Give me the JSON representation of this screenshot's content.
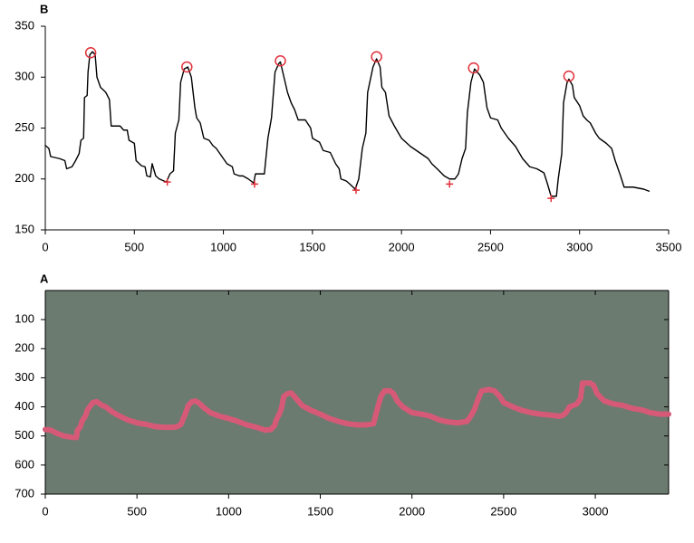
{
  "chart_data": [
    {
      "type": "line",
      "title": "B",
      "xlim": [
        0,
        3500
      ],
      "xticks": [
        0,
        500,
        1000,
        1500,
        2000,
        2500,
        3000,
        3500
      ],
      "ylim": [
        150,
        350
      ],
      "yticks": [
        150,
        200,
        250,
        300,
        350
      ],
      "frame": false,
      "series": [
        {
          "color": "#000000",
          "marker": "none",
          "x": [
            0,
            20,
            30,
            80,
            110,
            120,
            150,
            170,
            190,
            200,
            215,
            220,
            235,
            240,
            250,
            265,
            280,
            290,
            310,
            340,
            360,
            370,
            420,
            440,
            460,
            470,
            500,
            510,
            540,
            560,
            570,
            590,
            600,
            620,
            640,
            680,
            700,
            720,
            730,
            750,
            760,
            780,
            800,
            820,
            830,
            840,
            850,
            870,
            890,
            920,
            940,
            960,
            980,
            1000,
            1020,
            1050,
            1060,
            1090,
            1110,
            1140,
            1170,
            1180,
            1230,
            1250,
            1270,
            1290,
            1310,
            1320,
            1340,
            1360,
            1380,
            1400,
            1420,
            1460,
            1490,
            1500,
            1540,
            1560,
            1600,
            1630,
            1650,
            1660,
            1690,
            1710,
            1740,
            1760,
            1780,
            1800,
            1810,
            1840,
            1860,
            1880,
            1890,
            1910,
            1930,
            1960,
            2000,
            2050,
            2100,
            2150,
            2170,
            2200,
            2240,
            2270,
            2300,
            2320,
            2340,
            2360,
            2370,
            2390,
            2410,
            2440,
            2460,
            2480,
            2500,
            2540,
            2560,
            2600,
            2640,
            2680,
            2720,
            2760,
            2800,
            2820,
            2840,
            2870,
            2880,
            2900,
            2910,
            2930,
            2940,
            2960,
            2970,
            3000,
            3020,
            3040,
            3060,
            3090,
            3110,
            3150,
            3180,
            3200,
            3230,
            3250,
            3300,
            3360,
            3390
          ],
          "values": [
            233,
            230,
            222,
            220,
            218,
            210,
            212,
            218,
            225,
            238,
            240,
            280,
            282,
            305,
            322,
            325,
            322,
            300,
            290,
            285,
            278,
            252,
            252,
            248,
            248,
            238,
            235,
            218,
            213,
            212,
            203,
            202,
            215,
            203,
            200,
            197,
            205,
            208,
            245,
            258,
            295,
            308,
            310,
            300,
            285,
            270,
            260,
            255,
            240,
            238,
            233,
            230,
            225,
            220,
            215,
            212,
            205,
            203,
            203,
            200,
            196,
            205,
            205,
            240,
            260,
            305,
            313,
            315,
            300,
            285,
            275,
            268,
            258,
            258,
            250,
            240,
            236,
            228,
            226,
            215,
            210,
            200,
            198,
            195,
            190,
            200,
            230,
            245,
            285,
            310,
            318,
            310,
            290,
            285,
            262,
            252,
            240,
            232,
            226,
            220,
            215,
            210,
            203,
            200,
            200,
            205,
            220,
            230,
            265,
            295,
            308,
            302,
            295,
            270,
            260,
            258,
            250,
            240,
            232,
            220,
            212,
            210,
            206,
            195,
            183,
            183,
            200,
            225,
            275,
            295,
            298,
            292,
            280,
            272,
            262,
            258,
            255,
            245,
            240,
            235,
            230,
            218,
            203,
            192,
            192,
            190,
            188
          ]
        },
        {
          "color": "#e0303a",
          "marker": "circle",
          "x": [
            255,
            795,
            1320,
            1860,
            2405,
            2940
          ],
          "values": [
            324,
            310,
            316,
            320,
            309,
            301
          ]
        },
        {
          "color": "#e0303a",
          "marker": "plus",
          "x": [
            685,
            1175,
            1745,
            2270,
            2840
          ],
          "values": [
            197,
            195,
            189,
            195,
            181
          ]
        }
      ]
    },
    {
      "type": "line",
      "title": "A",
      "xlim": [
        0,
        3400
      ],
      "xticks": [
        0,
        500,
        1000,
        1500,
        2000,
        2500,
        3000
      ],
      "ylim": [
        700,
        0
      ],
      "yticks": [
        100,
        200,
        300,
        400,
        500,
        600,
        700
      ],
      "frame": true,
      "background": "#6b7b70",
      "series": [
        {
          "color": "#d65a78",
          "marker": "none",
          "x": [
            0,
            30,
            60,
            100,
            150,
            170,
            175,
            190,
            200,
            220,
            230,
            260,
            280,
            310,
            330,
            360,
            400,
            450,
            500,
            550,
            600,
            650,
            700,
            720,
            740,
            760,
            780,
            800,
            820,
            840,
            860,
            900,
            950,
            1000,
            1050,
            1100,
            1150,
            1200,
            1230,
            1250,
            1260,
            1280,
            1290,
            1300,
            1320,
            1340,
            1360,
            1380,
            1400,
            1450,
            1500,
            1550,
            1600,
            1650,
            1700,
            1750,
            1790,
            1810,
            1830,
            1850,
            1880,
            1900,
            1920,
            1950,
            2000,
            2050,
            2100,
            2150,
            2200,
            2250,
            2300,
            2320,
            2340,
            2360,
            2380,
            2420,
            2450,
            2480,
            2500,
            2550,
            2600,
            2650,
            2700,
            2750,
            2800,
            2820,
            2840,
            2860,
            2900,
            2920,
            2930,
            2970,
            2990,
            3010,
            3050,
            3100,
            3150,
            3200,
            3250,
            3300,
            3350,
            3400
          ],
          "values": [
            478,
            480,
            490,
            500,
            505,
            505,
            480,
            470,
            450,
            430,
            410,
            385,
            382,
            395,
            400,
            415,
            430,
            445,
            455,
            460,
            468,
            470,
            470,
            468,
            460,
            430,
            395,
            382,
            380,
            388,
            400,
            420,
            432,
            440,
            450,
            462,
            470,
            480,
            478,
            465,
            445,
            420,
            400,
            365,
            355,
            352,
            365,
            380,
            395,
            412,
            425,
            440,
            450,
            458,
            462,
            462,
            458,
            410,
            365,
            345,
            345,
            355,
            380,
            400,
            420,
            425,
            432,
            445,
            452,
            455,
            450,
            432,
            410,
            375,
            345,
            340,
            345,
            365,
            385,
            400,
            412,
            420,
            425,
            428,
            432,
            430,
            420,
            400,
            390,
            370,
            318,
            318,
            325,
            355,
            380,
            390,
            395,
            405,
            410,
            420,
            425,
            425
          ]
        }
      ]
    }
  ]
}
